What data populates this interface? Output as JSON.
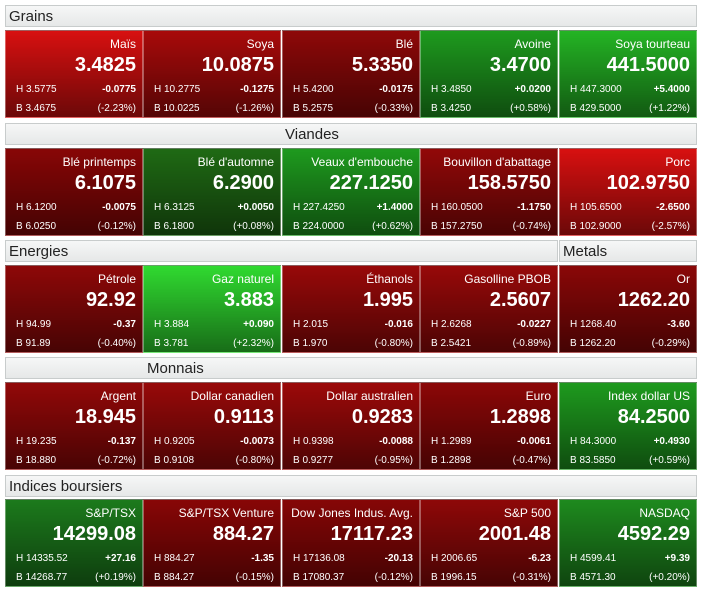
{
  "sections": [
    {
      "headers": [
        {
          "title": "Grains"
        }
      ],
      "tiles": [
        {
          "name": "Maïs",
          "price": "3.4825",
          "high": "H 3.5775",
          "change": "-0.0775",
          "low": "B 3.4675",
          "pct": "(-2.23%)",
          "color": "#d81010"
        },
        {
          "name": "Soya",
          "price": "10.0875",
          "high": "H 10.2775",
          "change": "-0.1275",
          "low": "B 10.0225",
          "pct": "(-1.26%)",
          "color": "#a80a0a"
        },
        {
          "name": "Blé",
          "price": "5.3350",
          "high": "H 5.4200",
          "change": "-0.0175",
          "low": "B 5.2575",
          "pct": "(-0.33%)",
          "color": "#8e0808"
        },
        {
          "name": "Avoine",
          "price": "3.4700",
          "high": "H 3.4850",
          "change": "+0.0200",
          "low": "B 3.4250",
          "pct": "(+0.58%)",
          "color": "#1e9a1e"
        },
        {
          "name": "Soya tourteau",
          "price": "441.5000",
          "high": "H 447.3000",
          "change": "+5.4000",
          "low": "B 429.5000",
          "pct": "(+1.22%)",
          "color": "#24b424"
        }
      ]
    },
    {
      "headers": [
        {
          "title": "Viandes"
        }
      ],
      "tiles": [
        {
          "name": "Blé printemps",
          "price": "6.1075",
          "high": "H 6.1200",
          "change": "-0.0075",
          "low": "B 6.0250",
          "pct": "(-0.12%)",
          "color": "#880606"
        },
        {
          "name": "Blé d'automne",
          "price": "6.2900",
          "high": "H 6.3125",
          "change": "+0.0050",
          "low": "B 6.1800",
          "pct": "(+0.08%)",
          "color": "#1f6a14"
        },
        {
          "name": "Veaux d'embouche",
          "price": "227.1250",
          "high": "H 227.4250",
          "change": "+1.4000",
          "low": "B 224.0000",
          "pct": "(+0.62%)",
          "color": "#1e9a1e"
        },
        {
          "name": "Bouvillon d'abattage",
          "price": "158.5750",
          "high": "H 160.0500",
          "change": "-1.1750",
          "low": "B 157.2750",
          "pct": "(-0.74%)",
          "color": "#920808"
        },
        {
          "name": "Porc",
          "price": "102.9750",
          "high": "H 105.6500",
          "change": "-2.6500",
          "low": "B 102.9000",
          "pct": "(-2.57%)",
          "color": "#d81010"
        }
      ]
    },
    {
      "headers": [
        {
          "title": "Energies"
        },
        {
          "title": "Metals"
        }
      ],
      "tiles": [
        {
          "name": "Pétrole",
          "price": "92.92",
          "high": "H 94.99",
          "change": "-0.37",
          "low": "B 91.89",
          "pct": "(-0.40%)",
          "color": "#8e0808"
        },
        {
          "name": "Gaz naturel",
          "price": "3.883",
          "high": "H 3.884",
          "change": "+0.090",
          "low": "B 3.781",
          "pct": "(+2.32%)",
          "color": "#30da30"
        },
        {
          "name": "Éthanols",
          "price": "1.995",
          "high": "H 2.015",
          "change": "-0.016",
          "low": "B 1.970",
          "pct": "(-0.80%)",
          "color": "#980909"
        },
        {
          "name": "Gasolline PBOB",
          "price": "2.5607",
          "high": "H 2.6268",
          "change": "-0.0227",
          "low": "B 2.5421",
          "pct": "(-0.89%)",
          "color": "#980909"
        },
        {
          "name": "Or",
          "price": "1262.20",
          "high": "H 1268.40",
          "change": "-3.60",
          "low": "B 1262.20",
          "pct": "(-0.29%)",
          "color": "#8a0707"
        }
      ]
    },
    {
      "headers": [
        {
          "title": "Monnais"
        }
      ],
      "tiles": [
        {
          "name": "Argent",
          "price": "18.945",
          "high": "H 19.235",
          "change": "-0.137",
          "low": "B 18.880",
          "pct": "(-0.72%)",
          "color": "#920808"
        },
        {
          "name": "Dollar canadien",
          "price": "0.9113",
          "high": "H 0.9205",
          "change": "-0.0073",
          "low": "B 0.9108",
          "pct": "(-0.80%)",
          "color": "#980909"
        },
        {
          "name": "Dollar australien",
          "price": "0.9283",
          "high": "H 0.9398",
          "change": "-0.0088",
          "low": "B 0.9277",
          "pct": "(-0.95%)",
          "color": "#9c0909"
        },
        {
          "name": "Euro",
          "price": "1.2898",
          "high": "H 1.2989",
          "change": "-0.0061",
          "low": "B 1.2898",
          "pct": "(-0.47%)",
          "color": "#8c0707"
        },
        {
          "name": "Index dollar US",
          "price": "84.2500",
          "high": "H 84.3000",
          "change": "+0.4930",
          "low": "B 83.5850",
          "pct": "(+0.59%)",
          "color": "#1e9a1e"
        }
      ]
    },
    {
      "headers": [
        {
          "title": "Indices boursiers"
        }
      ],
      "tiles": [
        {
          "name": "S&P/TSX",
          "price": "14299.08",
          "high": "H 14335.52",
          "change": "+27.16",
          "low": "B 14268.77",
          "pct": "(+0.19%)",
          "color": "#1c7a1c"
        },
        {
          "name": "S&P/TSX Venture",
          "price": "884.27",
          "high": "H 884.27",
          "change": "-1.35",
          "low": "B 884.27",
          "pct": "(-0.15%)",
          "color": "#880606"
        },
        {
          "name": "Dow Jones Indus. Avg.",
          "price": "17117.23",
          "high": "H 17136.08",
          "change": "-20.13",
          "low": "B 17080.37",
          "pct": "(-0.12%)",
          "color": "#860606"
        },
        {
          "name": "S&P 500",
          "price": "2001.48",
          "high": "H 2006.65",
          "change": "-6.23",
          "low": "B 1996.15",
          "pct": "(-0.31%)",
          "color": "#8e0808"
        },
        {
          "name": "NASDAQ",
          "price": "4592.29",
          "high": "H 4599.41",
          "change": "+9.39",
          "low": "B 4571.30",
          "pct": "(+0.20%)",
          "color": "#1e8a1e"
        }
      ]
    }
  ]
}
